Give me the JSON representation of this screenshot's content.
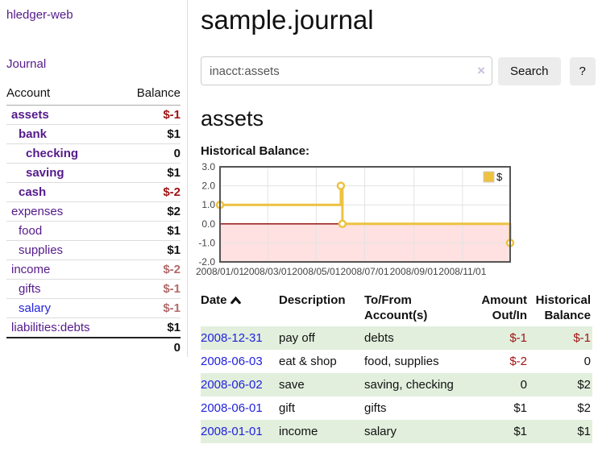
{
  "colors": {
    "link_purple": "#551a8b",
    "link_blue": "#2222dd",
    "negative_strong": "#a01313",
    "negative_faded": "#b36a6a",
    "row_stripe_green": "#e2efdd",
    "button_bg": "#ececec",
    "chart_series_gold": "#edc240",
    "chart_negative_pink": "#ffe1e1",
    "chart_zero_line": "#8b0000",
    "chart_border": "#545454",
    "chart_grid": "#e3e3e3"
  },
  "brand": {
    "label": "hledger-web"
  },
  "nav": {
    "journal": "Journal"
  },
  "sidebar": {
    "header": {
      "account": "Account",
      "balance": "Balance"
    },
    "accounts": [
      {
        "label": "assets",
        "balance": "$-1",
        "depth": 0,
        "bold": true,
        "balance_class": "neg",
        "link_class": "purple"
      },
      {
        "label": "bank",
        "balance": "$1",
        "depth": 1,
        "bold": true,
        "balance_class": "",
        "link_class": "purple"
      },
      {
        "label": "checking",
        "balance": "0",
        "depth": 2,
        "bold": true,
        "balance_class": "",
        "link_class": "purple"
      },
      {
        "label": "saving",
        "balance": "$1",
        "depth": 2,
        "bold": true,
        "balance_class": "",
        "link_class": "purple"
      },
      {
        "label": "cash",
        "balance": "$-2",
        "depth": 1,
        "bold": true,
        "balance_class": "neg",
        "link_class": "purple"
      },
      {
        "label": "expenses",
        "balance": "$2",
        "depth": 0,
        "bold": false,
        "balance_class": "plain",
        "link_class": "purple"
      },
      {
        "label": "food",
        "balance": "$1",
        "depth": 1,
        "bold": false,
        "balance_class": "plain",
        "link_class": "purple"
      },
      {
        "label": "supplies",
        "balance": "$1",
        "depth": 1,
        "bold": false,
        "balance_class": "plain",
        "link_class": "purple"
      },
      {
        "label": "income",
        "balance": "$-2",
        "depth": 0,
        "bold": false,
        "balance_class": "neg-faded",
        "link_class": "purple"
      },
      {
        "label": "gifts",
        "balance": "$-1",
        "depth": 1,
        "bold": false,
        "balance_class": "neg-faded",
        "link_class": "purple"
      },
      {
        "label": "salary",
        "balance": "$-1",
        "depth": 1,
        "bold": false,
        "balance_class": "neg-faded",
        "link_class": "blue"
      },
      {
        "label": "liabilities:debts",
        "balance": "$1",
        "depth": 0,
        "bold": false,
        "balance_class": "plain",
        "link_class": "purple"
      }
    ],
    "total": "0"
  },
  "main": {
    "title": "sample.journal",
    "search": {
      "value": "inacct:assets",
      "clear_icon": "×",
      "search_button": "Search",
      "help_button": "?"
    },
    "account_heading": "assets",
    "section_label": "Historical Balance:"
  },
  "chart_data": {
    "type": "line",
    "title": "Historical Balance",
    "step": true,
    "xlim": [
      "2008-01-01",
      "2008-12-31"
    ],
    "ylim": [
      -2,
      3
    ],
    "y_ticks": [
      "3.0",
      "2.0",
      "1.0",
      "0.0",
      "-1.0",
      "-2.0"
    ],
    "y_tick_values": [
      3,
      2,
      1,
      0,
      -1,
      -2
    ],
    "x_tick_labels": [
      "2008/01/01",
      "2008/03/01",
      "2008/05/01",
      "2008/07/01",
      "2008/09/01",
      "2008/11/01"
    ],
    "grid": true,
    "legend": {
      "position": "top-right",
      "label": "$"
    },
    "series": [
      {
        "name": "$",
        "color": "#edc240",
        "points": [
          {
            "x": "2008-01-01",
            "y": 1
          },
          {
            "x": "2008-06-01",
            "y": 2
          },
          {
            "x": "2008-06-03",
            "y": 0
          },
          {
            "x": "2008-12-31",
            "y": -1
          }
        ]
      }
    ],
    "negative_region_fill": "#ffe1e1",
    "zero_line_color": "#8b0000"
  },
  "register": {
    "headers": {
      "date": "Date",
      "description": "Description",
      "accounts": "To/From Account(s)",
      "amount": "Amount Out/In",
      "balance": "Historical Balance"
    },
    "rows": [
      {
        "date": "2008-12-31",
        "description": "pay off",
        "accounts": "debts",
        "amount": "$-1",
        "balance": "$-1",
        "amount_class": "neg",
        "balance_class": "neg"
      },
      {
        "date": "2008-06-03",
        "description": "eat & shop",
        "accounts": "food, supplies",
        "amount": "$-2",
        "balance": "0",
        "amount_class": "neg",
        "balance_class": ""
      },
      {
        "date": "2008-06-02",
        "description": "save",
        "accounts": "saving, checking",
        "amount": "0",
        "balance": "$2",
        "amount_class": "",
        "balance_class": ""
      },
      {
        "date": "2008-06-01",
        "description": "gift",
        "accounts": "gifts",
        "amount": "$1",
        "balance": "$2",
        "amount_class": "",
        "balance_class": ""
      },
      {
        "date": "2008-01-01",
        "description": "income",
        "accounts": "salary",
        "amount": "$1",
        "balance": "$1",
        "amount_class": "",
        "balance_class": ""
      }
    ]
  }
}
